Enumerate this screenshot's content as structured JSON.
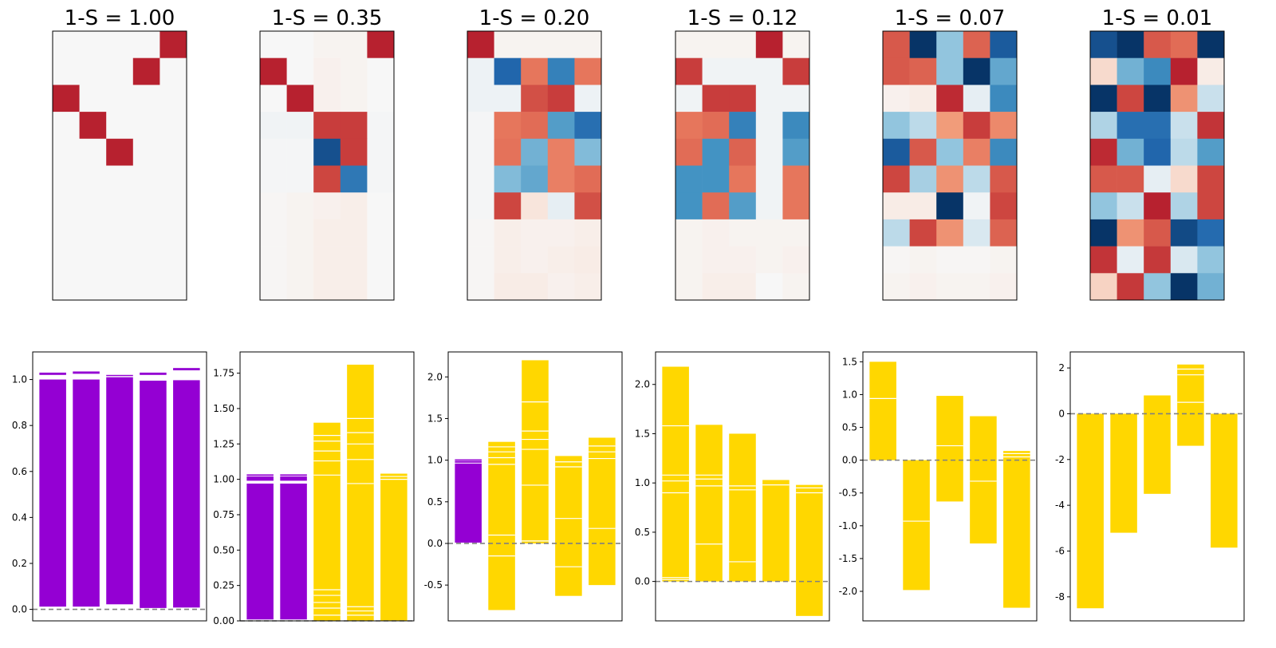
{
  "chart_data": {
    "type": "heatmap",
    "panels": [
      {
        "title": "1-S = 1.00",
        "matrix": [
          [
            0,
            0,
            0,
            0,
            0.95
          ],
          [
            0,
            0,
            0,
            0.95,
            0
          ],
          [
            0.95,
            0,
            0,
            0,
            0
          ],
          [
            0,
            0.95,
            0,
            0,
            0
          ],
          [
            0,
            0,
            0.95,
            0,
            0
          ],
          [
            0,
            0,
            0,
            0,
            0
          ],
          [
            0,
            0,
            0,
            0,
            0
          ],
          [
            0,
            0,
            0,
            0,
            0
          ],
          [
            0,
            0,
            0,
            0,
            0
          ],
          [
            0,
            0,
            0,
            0,
            0
          ]
        ],
        "bars": {
          "ylim": [
            -0.05,
            1.12
          ],
          "yticks": [
            "0.0",
            "0.2",
            "0.4",
            "0.6",
            "0.8",
            "1.0"
          ],
          "ytick_values": [
            0,
            0.2,
            0.4,
            0.6,
            0.8,
            1.0
          ],
          "columns": [
            {
              "color": "#9400D3",
              "segments": [
                [
                  0.012,
                  1.0
                ],
                [
                  1.02,
                  1.03
                ]
              ]
            },
            {
              "color": "#9400D3",
              "segments": [
                [
                  0.012,
                  1.0
                ],
                [
                  1.025,
                  1.035
                ]
              ]
            },
            {
              "color": "#9400D3",
              "segments": [
                [
                  0.022,
                  1.01
                ],
                [
                  1.015,
                  1.02
                ]
              ]
            },
            {
              "color": "#9400D3",
              "segments": [
                [
                  0.006,
                  0.995
                ],
                [
                  1.02,
                  1.03
                ]
              ]
            },
            {
              "color": "#9400D3",
              "segments": [
                [
                  0.008,
                  0.997
                ],
                [
                  1.04,
                  1.05
                ]
              ]
            }
          ]
        }
      },
      {
        "title": "1-S = 0.35",
        "matrix": [
          [
            0,
            0,
            0.02,
            0.02,
            0.95
          ],
          [
            0.95,
            0,
            0.03,
            0.02,
            0
          ],
          [
            0,
            0.95,
            0.03,
            0.02,
            0
          ],
          [
            -0.02,
            -0.02,
            0.8,
            0.8,
            -0.01
          ],
          [
            -0.01,
            -0.01,
            -0.85,
            0.8,
            -0.01
          ],
          [
            -0.01,
            -0.01,
            0.75,
            -0.65,
            -0.01
          ],
          [
            0.01,
            0.02,
            0.03,
            0.04,
            0
          ],
          [
            0.01,
            0.02,
            0.04,
            0.04,
            0
          ],
          [
            0.01,
            0.02,
            0.04,
            0.04,
            0
          ],
          [
            0.01,
            0.02,
            0.04,
            0.04,
            0
          ]
        ],
        "bars": {
          "ylim": [
            0,
            1.9
          ],
          "yticks": [
            "0.00",
            "0.25",
            "0.50",
            "0.75",
            "1.00",
            "1.25",
            "1.50",
            "1.75"
          ],
          "ytick_values": [
            0,
            0.25,
            0.5,
            0.75,
            1.0,
            1.25,
            1.5,
            1.75
          ],
          "columns": [
            {
              "color": "#9400D3",
              "segments": [
                [
                  0.01,
                  0.97
                ],
                [
                  0.99,
                  1.02
                ],
                [
                  1.025,
                  1.035
                ]
              ]
            },
            {
              "color": "#9400D3",
              "segments": [
                [
                  0.01,
                  0.97
                ],
                [
                  0.99,
                  1.02
                ],
                [
                  1.025,
                  1.035
                ]
              ]
            },
            {
              "color": "#FFD700",
              "segments": [
                [
                  0,
                  1.4
                ]
              ],
              "lines": [
                0.04,
                0.09,
                0.13,
                0.18,
                0.22,
                1.03,
                1.13,
                1.2,
                1.27,
                1.31
              ]
            },
            {
              "color": "#FFD700",
              "segments": [
                [
                  0,
                  1.81
                ]
              ],
              "lines": [
                0.04,
                0.07,
                0.1,
                0.97,
                1.14,
                1.25,
                1.33,
                1.43
              ]
            },
            {
              "color": "#FFD700",
              "segments": [
                [
                  0,
                  1.04
                ]
              ],
              "lines": [
                1.0,
                1.02
              ]
            }
          ]
        }
      },
      {
        "title": "1-S = 0.20",
        "matrix": [
          [
            0.95,
            0.02,
            0.02,
            0.02,
            0.02
          ],
          [
            -0.03,
            -0.75,
            0.5,
            -0.6,
            0.5
          ],
          [
            -0.03,
            -0.03,
            0.7,
            0.8,
            -0.03
          ],
          [
            -0.01,
            0.5,
            0.55,
            -0.45,
            -0.7
          ],
          [
            -0.01,
            0.52,
            -0.35,
            0.45,
            -0.3
          ],
          [
            -0.01,
            -0.3,
            -0.4,
            0.45,
            0.55
          ],
          [
            -0.01,
            0.75,
            0.07,
            -0.05,
            0.7
          ],
          [
            0.01,
            0.04,
            0.03,
            0.03,
            0.04
          ],
          [
            0.01,
            0.04,
            0.03,
            0.04,
            0.05
          ],
          [
            0.01,
            0.05,
            0.05,
            0.03,
            0.04
          ]
        ],
        "bars": {
          "ylim": [
            -0.93,
            2.3
          ],
          "yticks": [
            "-0.5",
            "0.0",
            "0.5",
            "1.0",
            "1.5",
            "2.0"
          ],
          "ytick_values": [
            -0.5,
            0,
            0.5,
            1.0,
            1.5,
            2.0
          ],
          "columns": [
            {
              "color": "#9400D3",
              "segments": [
                [
                  0.01,
                  0.96
                ],
                [
                  0.97,
                  0.99
                ],
                [
                  0.995,
                  1.01
                ]
              ]
            },
            {
              "color": "#FFD700",
              "segments": [
                [
                  -0.8,
                  1.22
                ]
              ],
              "lines": [
                -0.15,
                0.1,
                0.95,
                1.03,
                1.1,
                1.16
              ]
            },
            {
              "color": "#FFD700",
              "segments": [
                [
                  0,
                  2.2
                ]
              ],
              "lines": [
                0.03,
                0.7,
                1.13,
                1.25,
                1.35,
                1.7
              ]
            },
            {
              "color": "#FFD700",
              "segments": [
                [
                  -0.63,
                  1.05
                ]
              ],
              "lines": [
                -0.28,
                0.3,
                0.92,
                0.98
              ]
            },
            {
              "color": "#FFD700",
              "segments": [
                [
                  -0.5,
                  1.27
                ]
              ],
              "lines": [
                0.18,
                1.02,
                1.1,
                1.17
              ]
            }
          ]
        }
      },
      {
        "title": "1-S = 0.12",
        "matrix": [
          [
            0.02,
            0.02,
            0.02,
            0.95,
            0.02
          ],
          [
            0.8,
            -0.02,
            -0.02,
            -0.02,
            0.8
          ],
          [
            -0.02,
            0.8,
            0.8,
            -0.02,
            -0.02
          ],
          [
            0.5,
            0.55,
            -0.6,
            -0.02,
            -0.55
          ],
          [
            0.55,
            -0.5,
            0.6,
            -0.02,
            -0.45
          ],
          [
            -0.5,
            -0.5,
            0.5,
            -0.02,
            0.5
          ],
          [
            -0.5,
            0.55,
            -0.45,
            -0.02,
            0.5
          ],
          [
            0.02,
            0.03,
            0.02,
            0.02,
            0.02
          ],
          [
            0.02,
            0.03,
            0.03,
            0.02,
            0.03
          ],
          [
            0.02,
            0.04,
            0.04,
            0,
            0.02
          ]
        ],
        "bars": {
          "ylim": [
            -0.4,
            2.33
          ],
          "yticks": [
            "0.0",
            "0.5",
            "1.0",
            "1.5",
            "2.0"
          ],
          "ytick_values": [
            0,
            0.5,
            1.0,
            1.5,
            2.0
          ],
          "columns": [
            {
              "color": "#FFD700",
              "segments": [
                [
                  0,
                  2.18
                ]
              ],
              "lines": [
                0.02,
                0.04,
                0.9,
                1.02,
                1.08,
                1.58
              ]
            },
            {
              "color": "#FFD700",
              "segments": [
                [
                  0,
                  1.59
                ]
              ],
              "lines": [
                0.38,
                0.97,
                1.04,
                1.08
              ]
            },
            {
              "color": "#FFD700",
              "segments": [
                [
                  0,
                  1.5
                ]
              ],
              "lines": [
                0.2,
                0.93,
                0.97
              ]
            },
            {
              "color": "#FFD700",
              "segments": [
                [
                  0,
                  1.03
                ]
              ],
              "lines": [
                0.98
              ]
            },
            {
              "color": "#FFD700",
              "segments": [
                [
                  -0.35,
                  0.98
                ]
              ],
              "lines": [
                0.9,
                0.95
              ]
            }
          ]
        }
      },
      {
        "title": "1-S = 0.07",
        "matrix": [
          [
            0.65,
            -0.98,
            -0.25,
            0.6,
            -0.8
          ],
          [
            0.65,
            0.6,
            -0.25,
            -0.98,
            -0.4
          ],
          [
            0.03,
            0.05,
            0.9,
            -0.05,
            -0.55
          ],
          [
            -0.25,
            -0.15,
            0.3,
            0.8,
            0.4
          ],
          [
            -0.8,
            0.65,
            -0.25,
            0.45,
            -0.55
          ],
          [
            0.75,
            -0.2,
            0.35,
            -0.15,
            0.65
          ],
          [
            0.05,
            0.05,
            -0.98,
            -0.02,
            0.75
          ],
          [
            -0.15,
            0.75,
            0.35,
            -0.08,
            0.6
          ],
          [
            0.01,
            0.02,
            0.01,
            0.01,
            0.02
          ],
          [
            0.02,
            0.03,
            0.02,
            0.02,
            0.03
          ]
        ],
        "bars": {
          "ylim": [
            -2.45,
            1.65
          ],
          "yticks": [
            "-2.0",
            "-1.5",
            "-1.0",
            "-0.5",
            "0.0",
            "0.5",
            "1.0",
            "1.5"
          ],
          "ytick_values": [
            -2.0,
            -1.5,
            -1.0,
            -0.5,
            0,
            0.5,
            1.0,
            1.5
          ],
          "columns": [
            {
              "color": "#FFD700",
              "segments": [
                [
                  0,
                  1.5
                ]
              ],
              "lines": [
                0.94
              ]
            },
            {
              "color": "#FFD700",
              "segments": [
                [
                  -1.98,
                  0
                ]
              ],
              "lines": [
                -0.93
              ]
            },
            {
              "color": "#FFD700",
              "segments": [
                [
                  -0.63,
                  0.98
                ]
              ],
              "lines": [
                0.22
              ]
            },
            {
              "color": "#FFD700",
              "segments": [
                [
                  -1.27,
                  0.67
                ]
              ],
              "lines": [
                -0.32
              ]
            },
            {
              "color": "#FFD700",
              "segments": [
                [
                  -2.25,
                  0.14
                ]
              ],
              "lines": [
                0.05,
                0.1
              ]
            }
          ]
        }
      },
      {
        "title": "1-S = 0.01",
        "matrix": [
          [
            -0.85,
            -0.98,
            0.65,
            0.55,
            -0.98
          ],
          [
            0.1,
            -0.35,
            -0.55,
            0.95,
            0.05
          ],
          [
            -0.98,
            0.75,
            -0.98,
            0.35,
            -0.12
          ],
          [
            -0.18,
            -0.7,
            -0.7,
            -0.12,
            0.85
          ],
          [
            0.9,
            -0.35,
            -0.75,
            -0.15,
            -0.45
          ],
          [
            0.65,
            0.65,
            -0.05,
            0.1,
            0.75
          ],
          [
            -0.25,
            -0.12,
            0.95,
            -0.18,
            0.75
          ],
          [
            -0.98,
            0.35,
            0.65,
            -0.88,
            -0.72
          ],
          [
            0.85,
            -0.05,
            0.82,
            -0.08,
            -0.25
          ],
          [
            0.12,
            0.82,
            -0.25,
            -0.98,
            -0.35
          ]
        ],
        "bars": {
          "ylim": [
            -9.05,
            2.7
          ],
          "yticks": [
            "-8",
            "-6",
            "-4",
            "-2",
            "0",
            "2"
          ],
          "ytick_values": [
            -8,
            -6,
            -4,
            -2,
            0,
            2
          ],
          "columns": [
            {
              "color": "#FFD700",
              "segments": [
                [
                  -8.5,
                  0
                ]
              ],
              "lines": []
            },
            {
              "color": "#FFD700",
              "segments": [
                [
                  -5.2,
                  0
                ]
              ],
              "lines": []
            },
            {
              "color": "#FFD700",
              "segments": [
                [
                  -3.5,
                  0.8
                ]
              ],
              "lines": []
            },
            {
              "color": "#FFD700",
              "segments": [
                [
                  -1.4,
                  2.15
                ]
              ],
              "lines": [
                0.5,
                1.7,
                1.95
              ]
            },
            {
              "color": "#FFD700",
              "segments": [
                [
                  -5.85,
                  0
                ]
              ],
              "lines": []
            }
          ]
        }
      }
    ]
  }
}
